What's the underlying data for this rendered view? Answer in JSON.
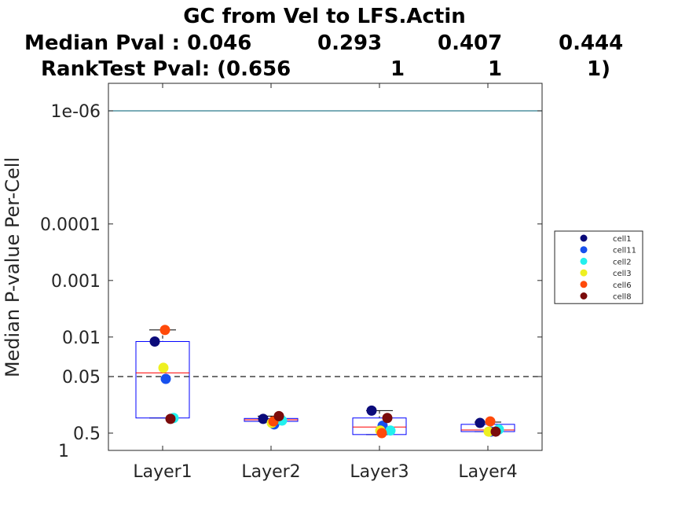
{
  "chart_data": {
    "type": "boxplot-scatter",
    "title_lines": [
      "GC from Vel to LFS.Actin",
      [
        "Median Pval : 0.046",
        "0.293",
        "0.407",
        "0.444"
      ],
      [
        "RankTest Pval: (0.656",
        "1",
        "1",
        "1)"
      ]
    ],
    "ylabel": "Median P-value Per-Cell",
    "y_scale": "reversed-log",
    "y_ticks": [
      {
        "value": 1e-06,
        "label": "1e-06"
      },
      {
        "value": 0.0001,
        "label": "0.0001"
      },
      {
        "value": 0.001,
        "label": "0.001"
      },
      {
        "value": 0.01,
        "label": "0.01"
      },
      {
        "value": 0.05,
        "label": "0.05"
      },
      {
        "value": 0.5,
        "label": "0.5"
      },
      {
        "value": 1,
        "label": "1"
      }
    ],
    "ylim": [
      5e-07,
      1
    ],
    "reference_lines": [
      {
        "value": 0.05,
        "style": "dashed",
        "color": "#000000"
      },
      {
        "value": 1e-06,
        "style": "solid",
        "color": "#2b7a8c"
      }
    ],
    "categories": [
      "Layer1",
      "Layer2",
      "Layer3",
      "Layer4"
    ],
    "boxes": [
      {
        "category": "Layer1",
        "q1": 0.012,
        "median": 0.043,
        "q3": 0.27,
        "whisker_low": 0.0075,
        "whisker_high": 0.27
      },
      {
        "category": "Layer2",
        "q1": 0.275,
        "median": 0.29,
        "q3": 0.31,
        "whisker_low": 0.25,
        "whisker_high": 0.31
      },
      {
        "category": "Layer3",
        "q1": 0.27,
        "median": 0.39,
        "q3": 0.53,
        "whisker_low": 0.2,
        "whisker_high": 0.53
      },
      {
        "category": "Layer4",
        "q1": 0.35,
        "median": 0.44,
        "q3": 0.47,
        "whisker_low": 0.32,
        "whisker_high": 0.47
      }
    ],
    "series": [
      {
        "name": "cell1",
        "color": "#0b0b7a",
        "values": [
          0.012,
          0.28,
          0.2,
          0.33
        ]
      },
      {
        "name": "cell11",
        "color": "#1750ee",
        "values": [
          0.055,
          0.35,
          0.37,
          0.47
        ]
      },
      {
        "name": "cell2",
        "color": "#22f0ee",
        "values": [
          0.27,
          0.3,
          0.45,
          0.43
        ]
      },
      {
        "name": "cell3",
        "color": "#eef021",
        "values": [
          0.035,
          0.33,
          0.45,
          0.47
        ]
      },
      {
        "name": "cell6",
        "color": "#ff4a0a",
        "values": [
          0.0075,
          0.31,
          0.5,
          0.31
        ]
      },
      {
        "name": "cell8",
        "color": "#7a0b0b",
        "values": [
          0.28,
          0.25,
          0.27,
          0.47
        ]
      }
    ],
    "legend_position": "right",
    "box_color": "#0000ff",
    "median_color": "#ff0000"
  }
}
